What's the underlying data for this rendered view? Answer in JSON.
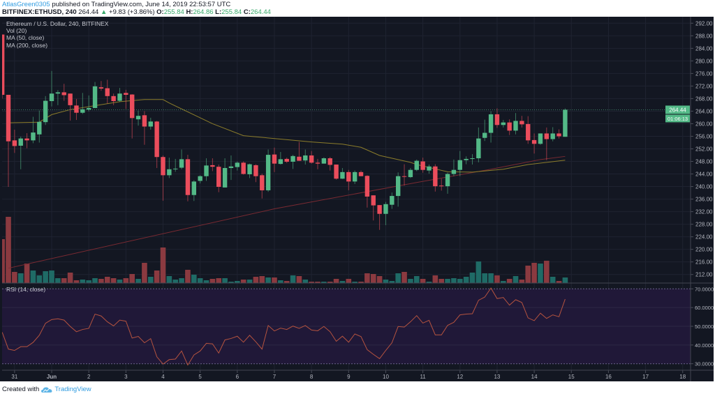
{
  "header": {
    "author": "AtlasGreen0305",
    "published": "published on TradingView.com, June 14, 2019 22:53:57 UTC",
    "symbol": "BITFINEX:ETHUSD, 240",
    "last": "264.44",
    "change_arrow": "▲",
    "change": "+9.83 (+3.86%)",
    "o_label": "O:",
    "o": "255.84",
    "h_label": "H:",
    "h": "264.86",
    "l_label": "L:",
    "l": "255.84",
    "c_label": "C:",
    "c": "264.44"
  },
  "legend": {
    "title": "Ethereum / U.S. Dollar, 240, BITFINEX",
    "vol": "Vol (20)",
    "ma50": "MA (50, close)",
    "ma200": "MA (200, close)",
    "rsi": "RSI (14, close)"
  },
  "footer": {
    "created_with": "Created with",
    "brand": "TradingView",
    "logo_icon": "tradingview-cloud-icon"
  },
  "colors": {
    "up": "#53b987",
    "down": "#eb4d5c",
    "vol_up": "#1f6b66",
    "vol_down": "#8b3a40",
    "ma50": "#8c7d2b",
    "ma200": "#7a2a32",
    "rsi": "#b5533f",
    "rsi_band": "#201838",
    "background": "#131722"
  },
  "chart_data": {
    "type": "candlestick",
    "symbol": "ETHUSD",
    "interval": "240",
    "price_axis": {
      "min": 212,
      "max": 292,
      "step": 4,
      "ticks": [
        "292.00",
        "288.00",
        "284.00",
        "280.00",
        "276.00",
        "272.00",
        "268.00",
        "264.00",
        "260.00",
        "256.00",
        "252.00",
        "248.00",
        "244.00",
        "240.00",
        "236.00",
        "232.00",
        "228.00",
        "224.00",
        "220.00",
        "216.00",
        "212.00"
      ]
    },
    "last_price": {
      "value": 264.44,
      "label": "264.44",
      "countdown": "01:06:13"
    },
    "x_ticks": [
      "31",
      "Jun",
      "2",
      "3",
      "4",
      "5",
      "6",
      "7",
      "8",
      "9",
      "10",
      "11",
      "12",
      "13",
      "14",
      "15",
      "16",
      "17",
      "18"
    ],
    "candle_columns": [
      "time",
      "open",
      "high",
      "low",
      "close",
      "volume"
    ],
    "candles": [
      [
        "May 30 16:00",
        288.4,
        288.4,
        268.0,
        269.2,
        63
      ],
      [
        "May 30 20:00",
        269.2,
        269.2,
        239.9,
        254.4,
        95
      ],
      [
        "May 31 00:00",
        254.7,
        258.1,
        250.7,
        252.9,
        16
      ],
      [
        "May 31 04:00",
        253.0,
        255.9,
        245.5,
        255.3,
        14
      ],
      [
        "May 31 08:00",
        255.3,
        257.0,
        252.2,
        254.7,
        28
      ],
      [
        "May 31 12:00",
        254.7,
        262.2,
        253.8,
        257.2,
        18
      ],
      [
        "May 31 16:00",
        256.6,
        264.2,
        254.0,
        260.6,
        11
      ],
      [
        "May 31 20:00",
        260.5,
        268.8,
        259.6,
        267.3,
        17
      ],
      [
        "Jun 1 00:00",
        267.2,
        276.8,
        265.5,
        269.6,
        18
      ],
      [
        "Jun 1 04:00",
        269.6,
        270.7,
        265.9,
        270.0,
        7
      ],
      [
        "Jun 1 08:00",
        270.0,
        272.7,
        267.3,
        269.1,
        7
      ],
      [
        "Jun 1 12:00",
        269.6,
        269.6,
        261.0,
        265.9,
        15
      ],
      [
        "Jun 1 16:00",
        265.8,
        267.9,
        261.2,
        263.5,
        4
      ],
      [
        "Jun 1 20:00",
        263.5,
        269.8,
        263.1,
        264.6,
        5
      ],
      [
        "Jun 2 00:00",
        264.5,
        269.0,
        263.9,
        265.0,
        4
      ],
      [
        "Jun 2 04:00",
        265.0,
        273.3,
        265.0,
        271.9,
        7
      ],
      [
        "Jun 2 08:00",
        271.6,
        273.6,
        270.5,
        271.2,
        6
      ],
      [
        "Jun 2 12:00",
        271.3,
        274.0,
        266.4,
        268.8,
        9
      ],
      [
        "Jun 2 16:00",
        268.8,
        269.6,
        265.9,
        267.2,
        7
      ],
      [
        "Jun 2 20:00",
        267.3,
        271.4,
        267.0,
        269.6,
        5
      ],
      [
        "Jun 3 00:00",
        269.8,
        270.8,
        264.7,
        269.2,
        7
      ],
      [
        "Jun 3 04:00",
        269.3,
        269.4,
        255.3,
        261.8,
        13
      ],
      [
        "Jun 3 08:00",
        261.4,
        264.2,
        259.4,
        262.5,
        6
      ],
      [
        "Jun 3 12:00",
        262.7,
        264.0,
        253.3,
        259.1,
        29
      ],
      [
        "Jun 3 16:00",
        259.1,
        261.9,
        258.1,
        260.7,
        9
      ],
      [
        "Jun 3 20:00",
        260.7,
        260.9,
        245.9,
        249.4,
        18
      ],
      [
        "Jun 4 00:00",
        249.4,
        249.9,
        235.5,
        243.6,
        51
      ],
      [
        "Jun 4 04:00",
        243.6,
        249.2,
        242.7,
        245.5,
        10
      ],
      [
        "Jun 4 08:00",
        245.5,
        248.8,
        244.7,
        245.7,
        5
      ],
      [
        "Jun 4 12:00",
        246.0,
        251.8,
        245.5,
        248.7,
        7
      ],
      [
        "Jun 4 16:00",
        248.7,
        250.1,
        235.3,
        237.3,
        19
      ],
      [
        "Jun 4 20:00",
        237.3,
        242.0,
        235.4,
        241.6,
        12
      ],
      [
        "Jun 5 00:00",
        241.8,
        243.6,
        241.0,
        243.3,
        7
      ],
      [
        "Jun 5 04:00",
        243.3,
        249.0,
        241.8,
        246.7,
        4
      ],
      [
        "Jun 5 08:00",
        246.8,
        249.0,
        244.9,
        246.3,
        6
      ],
      [
        "Jun 5 12:00",
        246.3,
        247.0,
        238.2,
        239.9,
        7
      ],
      [
        "Jun 5 16:00",
        239.7,
        249.0,
        239.7,
        245.9,
        7
      ],
      [
        "Jun 5 20:00",
        245.9,
        249.9,
        242.1,
        246.4,
        2
      ],
      [
        "Jun 6 00:00",
        246.2,
        248.0,
        245.1,
        247.6,
        3
      ],
      [
        "Jun 6 04:00",
        247.6,
        248.0,
        243.8,
        244.0,
        5
      ],
      [
        "Jun 6 08:00",
        243.9,
        247.3,
        242.7,
        247.1,
        5
      ],
      [
        "Jun 6 12:00",
        246.8,
        247.1,
        241.4,
        243.3,
        9
      ],
      [
        "Jun 6 16:00",
        243.6,
        244.1,
        236.2,
        238.8,
        10
      ],
      [
        "Jun 6 20:00",
        238.8,
        251.8,
        238.3,
        250.1,
        8
      ],
      [
        "Jun 7 00:00",
        250.2,
        252.4,
        244.6,
        247.3,
        8
      ],
      [
        "Jun 7 04:00",
        247.2,
        251.0,
        247.0,
        248.7,
        4
      ],
      [
        "Jun 7 08:00",
        248.8,
        249.2,
        247.5,
        247.9,
        3
      ],
      [
        "Jun 7 12:00",
        247.9,
        250.1,
        245.6,
        249.7,
        11
      ],
      [
        "Jun 7 16:00",
        249.5,
        254.2,
        248.2,
        248.2,
        10
      ],
      [
        "Jun 7 20:00",
        248.3,
        251.8,
        247.0,
        249.9,
        5
      ],
      [
        "Jun 8 00:00",
        249.9,
        251.3,
        247.3,
        247.6,
        2
      ],
      [
        "Jun 8 04:00",
        247.6,
        248.8,
        245.5,
        247.3,
        2
      ],
      [
        "Jun 8 08:00",
        247.3,
        249.3,
        247.3,
        249.0,
        2
      ],
      [
        "Jun 8 12:00",
        249.0,
        249.4,
        245.1,
        246.9,
        2
      ],
      [
        "Jun 8 16:00",
        247.0,
        247.0,
        242.2,
        242.5,
        6
      ],
      [
        "Jun 8 20:00",
        242.5,
        245.9,
        242.4,
        244.6,
        3
      ],
      [
        "Jun 9 00:00",
        244.6,
        245.3,
        238.8,
        241.6,
        6
      ],
      [
        "Jun 9 04:00",
        241.6,
        245.1,
        240.8,
        244.6,
        2
      ],
      [
        "Jun 9 08:00",
        244.6,
        245.1,
        243.3,
        243.3,
        2
      ],
      [
        "Jun 9 12:00",
        243.4,
        243.6,
        233.3,
        236.8,
        14
      ],
      [
        "Jun 9 16:00",
        237.2,
        237.2,
        229.2,
        234.0,
        13
      ],
      [
        "Jun 9 20:00",
        234.1,
        234.1,
        226.2,
        231.3,
        10
      ],
      [
        "Jun 10 00:00",
        231.3,
        235.1,
        227.7,
        234.4,
        5
      ],
      [
        "Jun 10 04:00",
        234.2,
        238.1,
        232.9,
        237.0,
        3
      ],
      [
        "Jun 10 08:00",
        237.0,
        244.5,
        233.6,
        243.3,
        14
      ],
      [
        "Jun 10 12:00",
        243.3,
        247.1,
        240.3,
        243.1,
        16
      ],
      [
        "Jun 10 16:00",
        243.0,
        245.9,
        242.7,
        245.3,
        6
      ],
      [
        "Jun 10 20:00",
        245.3,
        248.6,
        244.9,
        248.2,
        10
      ],
      [
        "Jun 11 00:00",
        248.0,
        249.2,
        244.4,
        245.3,
        6
      ],
      [
        "Jun 11 04:00",
        245.1,
        247.0,
        244.1,
        246.4,
        2
      ],
      [
        "Jun 11 08:00",
        246.4,
        247.1,
        238.4,
        240.1,
        11
      ],
      [
        "Jun 11 12:00",
        240.3,
        242.5,
        238.7,
        240.1,
        6
      ],
      [
        "Jun 11 16:00",
        240.1,
        244.4,
        237.7,
        244.0,
        6
      ],
      [
        "Jun 11 20:00",
        244.0,
        248.6,
        243.3,
        245.3,
        7
      ],
      [
        "Jun 12 00:00",
        245.3,
        251.3,
        243.3,
        248.4,
        6
      ],
      [
        "Jun 12 04:00",
        248.4,
        249.6,
        247.1,
        248.8,
        9
      ],
      [
        "Jun 12 08:00",
        248.8,
        250.3,
        247.0,
        249.0,
        15
      ],
      [
        "Jun 12 12:00",
        249.0,
        258.8,
        247.7,
        255.3,
        31
      ],
      [
        "Jun 12 16:00",
        255.5,
        261.3,
        254.5,
        257.1,
        14
      ],
      [
        "Jun 12 20:00",
        257.1,
        264.0,
        254.0,
        263.0,
        14
      ],
      [
        "Jun 13 00:00",
        263.0,
        264.9,
        258.7,
        259.6,
        11
      ],
      [
        "Jun 13 04:00",
        259.6,
        261.2,
        258.8,
        260.4,
        3
      ],
      [
        "Jun 13 08:00",
        260.4,
        261.4,
        256.4,
        257.8,
        6
      ],
      [
        "Jun 13 12:00",
        257.8,
        263.4,
        256.6,
        260.9,
        10
      ],
      [
        "Jun 13 16:00",
        260.9,
        262.5,
        258.8,
        259.8,
        5
      ],
      [
        "Jun 13 20:00",
        259.9,
        262.4,
        253.6,
        254.7,
        25
      ],
      [
        "Jun 14 00:00",
        254.8,
        256.9,
        250.5,
        253.6,
        29
      ],
      [
        "Jun 14 04:00",
        253.6,
        256.9,
        253.3,
        256.9,
        28
      ],
      [
        "Jun 14 08:00",
        256.9,
        258.8,
        248.4,
        255.1,
        32
      ],
      [
        "Jun 14 12:00",
        255.1,
        258.9,
        254.4,
        256.9,
        9
      ],
      [
        "Jun 14 16:00",
        256.9,
        258.2,
        255.3,
        256.0,
        3
      ],
      [
        "Jun 14 20:00",
        255.84,
        264.86,
        255.84,
        264.44,
        8
      ]
    ],
    "ma50": [
      {
        "t": "May 30 20:00",
        "v": 260.3
      },
      {
        "t": "May 31 16:00",
        "v": 260.5
      },
      {
        "t": "Jun 1 00:00",
        "v": 262.9
      },
      {
        "t": "Jun 1 12:00",
        "v": 264.5
      },
      {
        "t": "Jun 2 20:00",
        "v": 267.0
      },
      {
        "t": "Jun 3 12:00",
        "v": 267.7
      },
      {
        "t": "Jun 4 00:00",
        "v": 267.7
      },
      {
        "t": "Jun 4 04:00",
        "v": 266.6
      },
      {
        "t": "Jun 5 08:00",
        "v": 260.0
      },
      {
        "t": "Jun 6 04:00",
        "v": 256.2
      },
      {
        "t": "Jun 7 04:00",
        "v": 255.1
      },
      {
        "t": "Jun 8 00:00",
        "v": 254.2
      },
      {
        "t": "Jun 8 20:00",
        "v": 253.5
      },
      {
        "t": "Jun 9 08:00",
        "v": 252.5
      },
      {
        "t": "Jun 9 20:00",
        "v": 249.9
      },
      {
        "t": "Jun 10 16:00",
        "v": 247.7
      },
      {
        "t": "Jun 10 20:00",
        "v": 247.0
      },
      {
        "t": "Jun 11 16:00",
        "v": 244.7
      },
      {
        "t": "Jun 12 08:00",
        "v": 244.6
      },
      {
        "t": "Jun 13 04:00",
        "v": 245.5
      },
      {
        "t": "Jun 13 20:00",
        "v": 247.0
      },
      {
        "t": "Jun 14 20:00",
        "v": 248.4
      }
    ],
    "ma200": [
      {
        "t": "May 30 20:00",
        "v": 214.0
      },
      {
        "t": "Jun 7 00:00",
        "v": 232.9
      },
      {
        "t": "Jun 10 20:00",
        "v": 241.3
      },
      {
        "t": "Jun 12 20:00",
        "v": 245.5
      },
      {
        "t": "Jun 14 04:00",
        "v": 248.6
      },
      {
        "t": "Jun 14 20:00",
        "v": 249.6
      }
    ],
    "rsi": {
      "axis": {
        "min": 30,
        "max": 70,
        "ticks": [
          "70.0000",
          "60.0000",
          "50.0000",
          "40.0000",
          "30.0000"
        ],
        "upper_band": 70,
        "lower_band": 30
      },
      "values": [
        46.8,
        37.8,
        37.1,
        39.1,
        39.1,
        41.4,
        45.2,
        51.6,
        53.6,
        54.0,
        53.3,
        49.9,
        47.1,
        48.3,
        48.9,
        56.5,
        55.5,
        52.4,
        50.2,
        53.3,
        52.7,
        43.7,
        44.6,
        41.2,
        43.4,
        33.7,
        29.8,
        32.2,
        32.5,
        36.8,
        29.3,
        34.7,
        36.8,
        40.9,
        40.6,
        35.7,
        42.7,
        43.5,
        44.7,
        41.5,
        45.2,
        41.7,
        37.8,
        50.4,
        47.5,
        49.0,
        48.3,
        50.1,
        48.9,
        50.4,
        48.0,
        47.6,
        49.9,
        47.1,
        42.0,
        44.7,
        41.5,
        45.9,
        44.5,
        37.5,
        35.0,
        32.7,
        37.1,
        41.2,
        49.9,
        49.6,
        52.4,
        55.7,
        51.7,
        53.2,
        45.4,
        45.4,
        50.5,
        52.1,
        56.1,
        56.5,
        56.7,
        63.9,
        65.6,
        70.4,
        64.8,
        65.4,
        61.3,
        64.2,
        62.7,
        54.5,
        53.0,
        57.0,
        54.2,
        56.1,
        55.1,
        64.5
      ]
    }
  }
}
